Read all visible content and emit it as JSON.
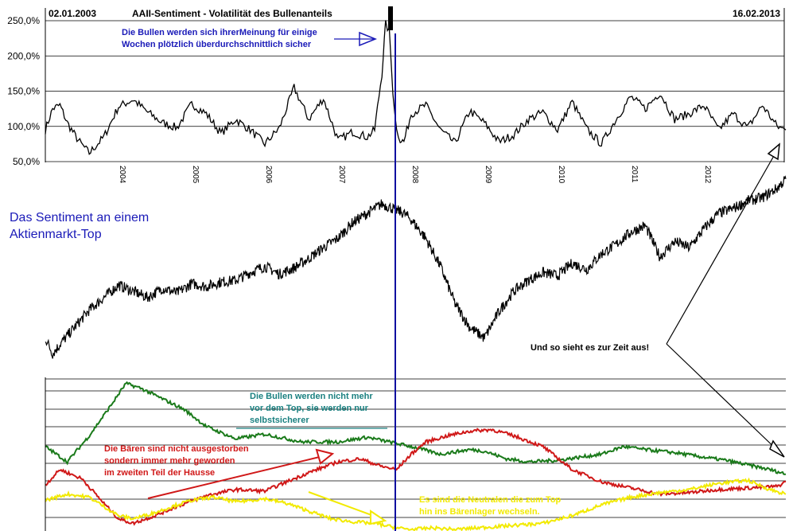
{
  "header": {
    "date_start": "02.01.2003",
    "title": "AAII-Sentiment - Volatilität des Bullenanteils",
    "date_end": "16.02.2013"
  },
  "side_title": {
    "line1": "Das Sentiment an einem",
    "line2": "Aktienmarkt-Top"
  },
  "annotations": {
    "bulls_certain": [
      "Die Bullen werden sich ihrerMeinung für einige",
      "Wochen plötzlich überdurchschnittlich sicher"
    ],
    "current": "Und so sieht es zur Zeit aus!",
    "bulls_not_more": [
      "Die Bullen werden nicht mehr",
      "vor dem Top, sie werden nur",
      "selbstsicherer"
    ],
    "bears": [
      "Die Bären sind nicht ausgestorben",
      "sondern immer mehr geworden",
      "im zweiten Teil der Hausse"
    ],
    "neutrals": [
      "Es sind die Neutralen die zum Top",
      "hin ins Bärenlager wechseln."
    ]
  },
  "colors": {
    "annotation_blue": "#1a1ab8",
    "bulls_green": "#1a7a1a",
    "bears_red": "#d01818",
    "neutrals_yellow": "#f2ea00",
    "teal_note": "#1a8080",
    "marker_line": "#1010a0"
  },
  "chart_data": [
    {
      "type": "line",
      "title": "AAII-Sentiment - Volatilität des Bullenanteils",
      "y_ticks": [
        "250,0%",
        "200,0%",
        "150,0%",
        "100,0%",
        "50,0%"
      ],
      "ylim": [
        50,
        250
      ],
      "x_ticks": [
        "2004",
        "2005",
        "2006",
        "2007",
        "2008",
        "2009",
        "2010",
        "2011",
        "2012"
      ],
      "xlim": [
        2003.0,
        2013.12
      ],
      "grid": true,
      "series": [
        {
          "x": [
            2003.0,
            2003.1,
            2003.2,
            2003.3,
            2003.45,
            2003.6,
            2003.8,
            2004.0,
            2004.2,
            2004.4,
            2004.6,
            2004.8,
            2005.0,
            2005.2,
            2005.4,
            2005.6,
            2005.8,
            2006.0,
            2006.2,
            2006.4,
            2006.6,
            2006.8,
            2007.0,
            2007.2,
            2007.4,
            2007.5,
            2007.6,
            2007.65,
            2007.7,
            2007.75,
            2007.8,
            2007.85,
            2007.9,
            2008.0,
            2008.2,
            2008.4,
            2008.6,
            2008.8,
            2009.0,
            2009.2,
            2009.4,
            2009.6,
            2009.8,
            2010.0,
            2010.2,
            2010.4,
            2010.6,
            2010.8,
            2011.0,
            2011.2,
            2011.4,
            2011.6,
            2011.8,
            2012.0,
            2012.2,
            2012.4,
            2012.6,
            2012.8,
            2013.0,
            2013.12
          ],
          "values": [
            95,
            125,
            130,
            105,
            80,
            62,
            85,
            128,
            138,
            120,
            105,
            98,
            132,
            118,
            90,
            110,
            95,
            75,
            98,
            155,
            110,
            140,
            80,
            92,
            85,
            95,
            175,
            245,
            235,
            150,
            95,
            82,
            78,
            118,
            130,
            95,
            76,
            122,
            105,
            78,
            88,
            110,
            120,
            95,
            135,
            96,
            75,
            110,
            142,
            125,
            148,
            110,
            118,
            130,
            95,
            118,
            98,
            130,
            100,
            95
          ]
        }
      ]
    },
    {
      "type": "line",
      "title": "",
      "grid": false,
      "series": [
        {
          "x": [
            2003.0,
            2003.1,
            2003.2,
            2003.4,
            2003.6,
            2003.8,
            2004.0,
            2004.2,
            2004.4,
            2004.6,
            2004.8,
            2005.0,
            2005.2,
            2005.4,
            2005.6,
            2005.8,
            2006.0,
            2006.2,
            2006.4,
            2006.6,
            2006.8,
            2007.0,
            2007.2,
            2007.4,
            2007.6,
            2007.8,
            2007.9,
            2008.0,
            2008.2,
            2008.4,
            2008.6,
            2008.8,
            2009.0,
            2009.2,
            2009.4,
            2009.6,
            2009.8,
            2010.0,
            2010.2,
            2010.4,
            2010.6,
            2010.8,
            2011.0,
            2011.2,
            2011.4,
            2011.6,
            2011.8,
            2012.0,
            2012.2,
            2012.4,
            2012.6,
            2012.8,
            2013.0,
            2013.12
          ],
          "values": [
            18,
            8,
            14,
            25,
            36,
            44,
            52,
            48,
            44,
            50,
            47,
            53,
            51,
            54,
            55,
            60,
            64,
            59,
            63,
            69,
            76,
            82,
            92,
            98,
            104,
            100,
            98,
            94,
            82,
            64,
            40,
            25,
            18,
            35,
            48,
            55,
            60,
            58,
            66,
            62,
            72,
            78,
            86,
            90,
            70,
            80,
            76,
            88,
            98,
            101,
            106,
            108,
            114,
            120
          ]
        }
      ]
    },
    {
      "type": "line",
      "title": "",
      "grid": true,
      "ylim": [
        0,
        100
      ],
      "series": [
        {
          "name": "Bullen",
          "x": [
            2003.0,
            2003.3,
            2003.6,
            2003.9,
            2004.1,
            2004.3,
            2004.6,
            2004.9,
            2005.2,
            2005.6,
            2006.0,
            2006.5,
            2007.0,
            2007.4,
            2007.7,
            2008.0,
            2008.4,
            2008.8,
            2009.0,
            2009.3,
            2009.6,
            2010.0,
            2010.3,
            2010.6,
            2010.9,
            2011.2,
            2011.6,
            2012.0,
            2012.3,
            2012.6,
            2012.9,
            2013.12
          ],
          "values": [
            55,
            45,
            62,
            82,
            96,
            93,
            86,
            79,
            68,
            60,
            63,
            58,
            58,
            61,
            58,
            55,
            50,
            53,
            52,
            47,
            45,
            46,
            48,
            50,
            55,
            53,
            51,
            48,
            46,
            43,
            40,
            37
          ]
        },
        {
          "name": "Bären",
          "x": [
            2003.0,
            2003.2,
            2003.5,
            2003.8,
            2004.0,
            2004.2,
            2004.5,
            2004.8,
            2005.2,
            2005.6,
            2006.0,
            2006.3,
            2006.6,
            2007.0,
            2007.3,
            2007.6,
            2007.8,
            2008.0,
            2008.2,
            2008.5,
            2008.8,
            2009.1,
            2009.4,
            2009.8,
            2010.2,
            2010.6,
            2011.0,
            2011.4,
            2011.8,
            2012.2,
            2012.6,
            2013.0,
            2013.12
          ],
          "values": [
            30,
            40,
            34,
            18,
            8,
            5,
            10,
            16,
            23,
            27,
            26,
            32,
            38,
            45,
            47,
            42,
            40,
            50,
            58,
            62,
            65,
            66,
            62,
            55,
            40,
            32,
            28,
            24,
            25,
            27,
            28,
            29,
            32
          ]
        },
        {
          "name": "Neutrale",
          "x": [
            2003.0,
            2003.3,
            2003.6,
            2004.0,
            2004.2,
            2004.5,
            2004.8,
            2005.0,
            2005.3,
            2005.6,
            2006.0,
            2006.3,
            2006.6,
            2006.9,
            2007.2,
            2007.5,
            2007.8,
            2008.0,
            2008.3,
            2008.6,
            2008.9,
            2009.2,
            2009.5,
            2009.8,
            2010.2,
            2010.6,
            2011.0,
            2011.4,
            2011.8,
            2012.2,
            2012.6,
            2012.9,
            2013.12
          ],
          "values": [
            20,
            24,
            22,
            10,
            8,
            12,
            17,
            20,
            22,
            19,
            21,
            18,
            13,
            8,
            6,
            5,
            2,
            1,
            2,
            1,
            2,
            3,
            4,
            5,
            10,
            17,
            22,
            25,
            27,
            31,
            33,
            27,
            24
          ]
        }
      ]
    }
  ]
}
